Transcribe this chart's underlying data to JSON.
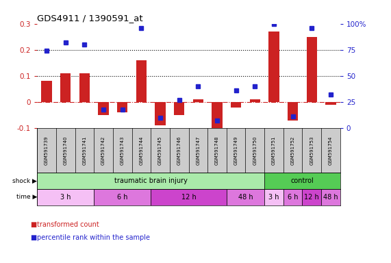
{
  "title": "GDS4911 / 1390591_at",
  "samples": [
    "GSM591739",
    "GSM591740",
    "GSM591741",
    "GSM591742",
    "GSM591743",
    "GSM591744",
    "GSM591745",
    "GSM591746",
    "GSM591747",
    "GSM591748",
    "GSM591749",
    "GSM591750",
    "GSM591751",
    "GSM591752",
    "GSM591753",
    "GSM591754"
  ],
  "bar_values": [
    0.08,
    0.11,
    0.11,
    -0.05,
    -0.04,
    0.16,
    -0.09,
    -0.05,
    0.01,
    -0.12,
    -0.02,
    0.01,
    0.27,
    -0.07,
    0.25,
    -0.01
  ],
  "dot_values_pct": [
    74,
    82,
    80,
    18,
    18,
    96,
    10,
    27,
    40,
    7,
    36,
    40,
    100,
    11,
    96,
    32
  ],
  "bar_color": "#cc2222",
  "dot_color": "#2222cc",
  "ylim_left": [
    -0.1,
    0.3
  ],
  "yticks_left": [
    -0.1,
    0.0,
    0.1,
    0.2,
    0.3
  ],
  "ytick_labels_left": [
    "-0.1",
    "0",
    "0.1",
    "0.2",
    "0.3"
  ],
  "ytick_labels_right": [
    "0",
    "25",
    "50",
    "75",
    "100%"
  ],
  "hline_y": [
    0.1,
    0.2
  ],
  "shock_groups": [
    {
      "label": "traumatic brain injury",
      "start": 0,
      "end": 12,
      "color": "#aaeaaa"
    },
    {
      "label": "control",
      "start": 12,
      "end": 16,
      "color": "#55cc55"
    }
  ],
  "time_groups": [
    {
      "label": "3 h",
      "start": 0,
      "end": 3,
      "color": "#f5c0f5"
    },
    {
      "label": "6 h",
      "start": 3,
      "end": 6,
      "color": "#dd77dd"
    },
    {
      "label": "12 h",
      "start": 6,
      "end": 10,
      "color": "#cc44cc"
    },
    {
      "label": "48 h",
      "start": 10,
      "end": 12,
      "color": "#dd77dd"
    },
    {
      "label": "3 h",
      "start": 12,
      "end": 13,
      "color": "#f5c0f5"
    },
    {
      "label": "6 h",
      "start": 13,
      "end": 14,
      "color": "#dd77dd"
    },
    {
      "label": "12 h",
      "start": 14,
      "end": 15,
      "color": "#cc44cc"
    },
    {
      "label": "48 h",
      "start": 15,
      "end": 16,
      "color": "#dd77dd"
    }
  ],
  "legend_bar_label": "transformed count",
  "legend_dot_label": "percentile rank within the sample",
  "shock_label": "shock",
  "time_label": "time",
  "bg_color": "#ffffff",
  "tick_color_left": "#cc2222",
  "tick_color_right": "#2222cc",
  "xlabels_bg": "#cccccc"
}
